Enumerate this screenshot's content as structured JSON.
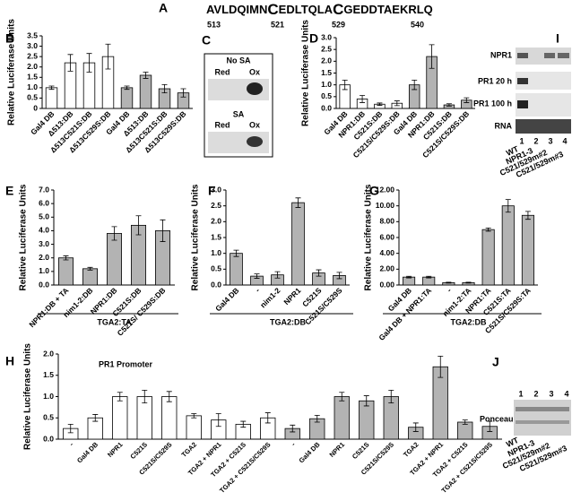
{
  "sequence": {
    "label": "A",
    "parts": [
      "AVLDQIMN",
      "C",
      "EDLTQLA",
      "C",
      "GEDDTAEKRLQ"
    ],
    "positions": [
      513,
      521,
      529,
      540
    ]
  },
  "blot_c": {
    "label": "C",
    "top": {
      "title": "No SA",
      "lanes": [
        "Red",
        "Ox"
      ]
    },
    "bottom": {
      "title": "SA",
      "lanes": [
        "Red",
        "Ox"
      ]
    }
  },
  "blot_i": {
    "label": "I",
    "rows": [
      "NPR1",
      "PR1 20 h",
      "PR1 100 h",
      "RNA"
    ],
    "lanes": [
      "1",
      "2",
      "3",
      "4"
    ],
    "genotypes": [
      "WT",
      "NPR1-3",
      "C521/529m#2",
      "C521/529m#3"
    ]
  },
  "blot_j": {
    "label": "J",
    "lanes": [
      "1",
      "2",
      "3",
      "4"
    ],
    "row": "Ponceau",
    "genotypes": [
      "WT",
      "NPR1-3",
      "C521/529m#2",
      "C521/529m#3"
    ]
  },
  "chart_data": [
    {
      "type": "bar",
      "label": "B",
      "ylabel": "Relative Luciferase Units",
      "categories": [
        "Gal4 DB",
        "Δ513:DB",
        "Δ513C521S:DB",
        "Δ513C529S:DB",
        "Gal4 DB",
        "Δ513:DB",
        "Δ513C521S:DB",
        "Δ513C529S:DB"
      ],
      "values": [
        1.0,
        2.2,
        2.2,
        2.5,
        1.0,
        1.6,
        0.95,
        0.75
      ],
      "errors": [
        0.08,
        0.4,
        0.45,
        0.6,
        0.08,
        0.15,
        0.2,
        0.2
      ],
      "colors": [
        "#ffffff",
        "#ffffff",
        "#ffffff",
        "#ffffff",
        "#b3b3b3",
        "#b3b3b3",
        "#b3b3b3",
        "#b3b3b3"
      ],
      "ylim": [
        0,
        3.5
      ],
      "yticks": [
        0,
        0.5,
        {
          "value": 1,
          "label": "1.0"
        },
        1.5,
        {
          "value": 2,
          "label": "2.0"
        },
        2.5,
        {
          "value": 3,
          "label": "3.0"
        },
        3.5
      ]
    },
    {
      "type": "bar",
      "label": "D",
      "ylabel": "Relative Luciferase Units",
      "categories": [
        "Gal4 DB",
        "NPR1:DB",
        "C521S:DB",
        "C521S/C529S:DB",
        "Gal4 DB",
        "NPR1:DB",
        "C521S:DB",
        "C521S/C529S:DB"
      ],
      "values": [
        1.0,
        0.4,
        0.18,
        0.22,
        1.0,
        2.2,
        0.15,
        0.35
      ],
      "errors": [
        0.2,
        0.15,
        0.05,
        0.1,
        0.2,
        0.5,
        0.05,
        0.1
      ],
      "colors": [
        "#ffffff",
        "#ffffff",
        "#ffffff",
        "#ffffff",
        "#b3b3b3",
        "#b3b3b3",
        "#b3b3b3",
        "#b3b3b3"
      ],
      "ylim": [
        0,
        3
      ],
      "yticks": [
        {
          "value": 0,
          "label": "0.0"
        },
        0.5,
        {
          "value": 1,
          "label": "1.0"
        },
        1.5,
        {
          "value": 2,
          "label": "2.0"
        },
        2.5,
        {
          "value": 3,
          "label": "3.0"
        }
      ]
    },
    {
      "type": "bar",
      "label": "E",
      "ylabel": "Relative Luciferase Units",
      "group_label": "TGA2:TA",
      "categories": [
        "NPR1:DB + TA",
        "nim1-2:DB",
        "NPR1:DB",
        "C521S:DB",
        "C521S/ C529S:DB"
      ],
      "values": [
        2.0,
        1.2,
        3.8,
        4.4,
        4.0
      ],
      "errors": [
        0.15,
        0.1,
        0.5,
        0.7,
        0.8
      ],
      "colors": [
        "#b3b3b3",
        "#b3b3b3",
        "#b3b3b3",
        "#b3b3b3",
        "#b3b3b3"
      ],
      "ylim": [
        0,
        7
      ],
      "yticks": [
        {
          "value": 0,
          "label": "0.0"
        },
        {
          "value": 1,
          "label": "1.0"
        },
        {
          "value": 2,
          "label": "2.0"
        },
        {
          "value": 3,
          "label": "3.0"
        },
        {
          "value": 4,
          "label": "4.0"
        },
        {
          "value": 5,
          "label": "5.0"
        },
        {
          "value": 6,
          "label": "6.0"
        },
        {
          "value": 7,
          "label": "7.0"
        }
      ]
    },
    {
      "type": "bar",
      "label": "F",
      "ylabel": "Relative Luciferase Units",
      "group_label": "TGA2:DB",
      "categories": [
        "Gal4 DB",
        "-",
        "nim1-2",
        "NPR1",
        "C521S",
        "C521S/C529S"
      ],
      "values": [
        1.0,
        0.28,
        0.32,
        2.6,
        0.38,
        0.3
      ],
      "errors": [
        0.1,
        0.07,
        0.1,
        0.15,
        0.1,
        0.1
      ],
      "colors": [
        "#b3b3b3",
        "#b3b3b3",
        "#b3b3b3",
        "#b3b3b3",
        "#b3b3b3",
        "#b3b3b3"
      ],
      "ylim": [
        0,
        3
      ],
      "yticks": [
        {
          "value": 0,
          "label": "0.0"
        },
        0.5,
        {
          "value": 1,
          "label": "1.0"
        },
        1.5,
        {
          "value": 2,
          "label": "2.0"
        },
        2.5,
        {
          "value": 3,
          "label": "3.0"
        }
      ]
    },
    {
      "type": "bar",
      "label": "G",
      "ylabel": "Relative Luciferase Units",
      "group_label": "TGA2:DB",
      "categories": [
        "Gal4 DB",
        "Gal4 DB + NPR1:TA",
        "-",
        "nim1-2:TA",
        "NPR1:TA",
        "C521S:TA",
        "C521S/C529S:TA"
      ],
      "values": [
        1.0,
        1.0,
        0.3,
        0.3,
        7.0,
        10.0,
        8.8
      ],
      "errors": [
        0.1,
        0.1,
        0.05,
        0.05,
        0.2,
        0.8,
        0.5
      ],
      "colors": [
        "#b3b3b3",
        "#b3b3b3",
        "#b3b3b3",
        "#b3b3b3",
        "#b3b3b3",
        "#b3b3b3",
        "#b3b3b3"
      ],
      "ylim": [
        0,
        12
      ],
      "yticks": [
        {
          "value": 0,
          "label": "0.00"
        },
        {
          "value": 2,
          "label": "2.00"
        },
        {
          "value": 4,
          "label": "4.00"
        },
        {
          "value": 6,
          "label": "6.00"
        },
        {
          "value": 8,
          "label": "8.00"
        },
        {
          "value": 10,
          "label": "10.00"
        },
        {
          "value": 12,
          "label": "12.00"
        }
      ]
    },
    {
      "type": "bar",
      "label": "H",
      "title": "PR1 Promoter",
      "ylabel": "Relative Luciferase Units",
      "categories": [
        "-",
        "Gal4 DB",
        "NPR1",
        "C521S",
        "C521S/C529S",
        "TGA2",
        "TGA2 + NPR1",
        "TGA2 + C521S",
        "TGA2 + C521S/C529S",
        "-",
        "Gal4 DB",
        "NPR1",
        "C521S",
        "C521S/C529S",
        "TGA2",
        "TGA2 + NPR1",
        "TGA2 + C521S",
        "TGA2 + C521S/C529S"
      ],
      "values": [
        0.25,
        0.5,
        1.0,
        1.0,
        1.0,
        0.55,
        0.45,
        0.35,
        0.5,
        0.25,
        0.48,
        1.0,
        0.9,
        1.0,
        0.28,
        1.7,
        0.4,
        0.3
      ],
      "errors": [
        0.1,
        0.08,
        0.1,
        0.15,
        0.12,
        0.05,
        0.15,
        0.07,
        0.12,
        0.08,
        0.08,
        0.1,
        0.12,
        0.15,
        0.1,
        0.25,
        0.05,
        0.12
      ],
      "colors": [
        "#ffffff",
        "#ffffff",
        "#ffffff",
        "#ffffff",
        "#ffffff",
        "#ffffff",
        "#ffffff",
        "#ffffff",
        "#ffffff",
        "#b3b3b3",
        "#b3b3b3",
        "#b3b3b3",
        "#b3b3b3",
        "#b3b3b3",
        "#b3b3b3",
        "#b3b3b3",
        "#b3b3b3",
        "#b3b3b3"
      ],
      "ylim": [
        0,
        2
      ],
      "yticks": [
        {
          "value": 0,
          "label": "0.0"
        },
        0.5,
        {
          "value": 1,
          "label": "1.0"
        },
        1.5,
        {
          "value": 2,
          "label": "2.0"
        }
      ]
    }
  ]
}
